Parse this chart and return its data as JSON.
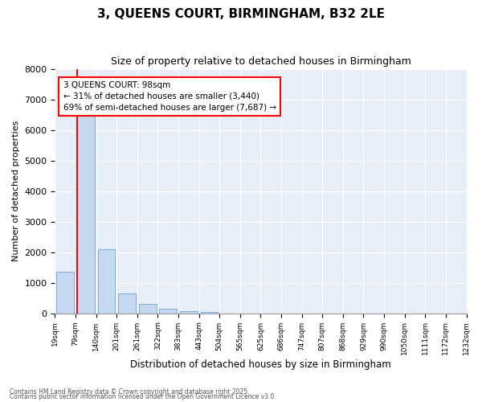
{
  "title_line1": "3, QUEENS COURT, BIRMINGHAM, B32 2LE",
  "title_line2": "Size of property relative to detached houses in Birmingham",
  "xlabel": "Distribution of detached houses by size in Birmingham",
  "ylabel": "Number of detached properties",
  "annotation_title": "3 QUEENS COURT: 98sqm",
  "annotation_line2": "← 31% of detached houses are smaller (3,440)",
  "annotation_line3": "69% of semi-detached houses are larger (7,687) →",
  "property_size_bin_index": 1,
  "footer_line1": "Contains HM Land Registry data © Crown copyright and database right 2025.",
  "footer_line2": "Contains public sector information licensed under the Open Government Licence v3.0.",
  "bar_color": "#c5d8f0",
  "bar_edge_color": "#7eadd4",
  "vline_color": "red",
  "annotation_box_edgecolor": "red",
  "bins": [
    19,
    79,
    140,
    201,
    261,
    322,
    383,
    443,
    504,
    565,
    625,
    686,
    747,
    807,
    868,
    929,
    990,
    1050,
    1111,
    1172,
    1232
  ],
  "bin_labels": [
    "19sqm",
    "79sqm",
    "140sqm",
    "201sqm",
    "261sqm",
    "322sqm",
    "383sqm",
    "443sqm",
    "504sqm",
    "565sqm",
    "625sqm",
    "686sqm",
    "747sqm",
    "807sqm",
    "868sqm",
    "929sqm",
    "990sqm",
    "1050sqm",
    "1111sqm",
    "1172sqm",
    "1232sqm"
  ],
  "counts": [
    1350,
    6650,
    2100,
    650,
    300,
    150,
    80,
    50,
    0,
    0,
    0,
    0,
    0,
    0,
    0,
    0,
    0,
    0,
    0,
    0
  ],
  "ylim": [
    0,
    8000
  ],
  "yticks": [
    0,
    1000,
    2000,
    3000,
    4000,
    5000,
    6000,
    7000,
    8000
  ],
  "background_color": "#e8eef8",
  "grid_color": "white"
}
